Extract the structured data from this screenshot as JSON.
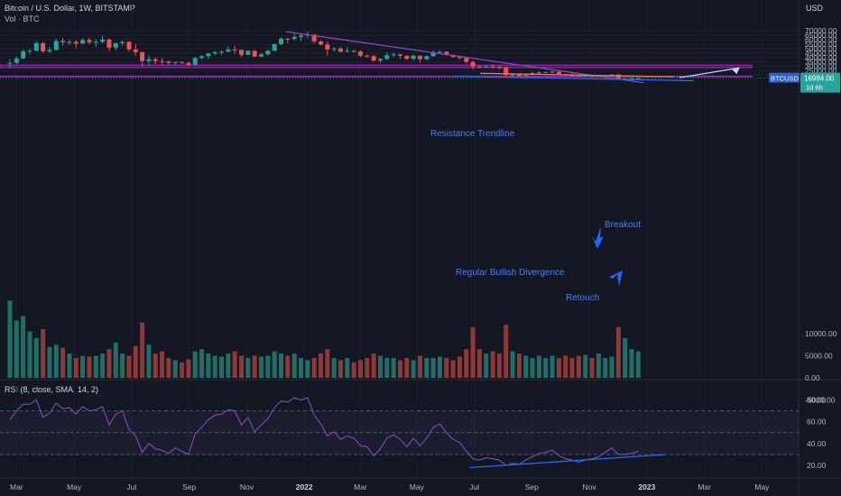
{
  "header": {
    "symbol_line": "Bitcoin / U.S. Dollar, 1W, BITSTAMP",
    "vol_line": "Vol · BTC",
    "currency": "USD",
    "rsi_line": "RSI (8, close, SMA, 14, 2)"
  },
  "price_badge": {
    "ticker": "BTCUSD",
    "price": "16984.00",
    "countdown": "1d 6h"
  },
  "colors": {
    "background": "#131722",
    "up": "#26a69a",
    "down": "#ef5350",
    "up_vol": "#1f6e67",
    "down_vol": "#8f3836",
    "zone": "#9c27b0",
    "trend_purple": "#8e44c8",
    "orange": "#f57c3a",
    "blue": "#2962ff",
    "cyan_arrow": "#a8e6ef",
    "rsi": "#7e57c2"
  },
  "annotations": {
    "resistance": "Resistance Trendline",
    "breakout": "Breakout",
    "divergence": "Regular Bullish Divergence",
    "retouch": "Retouch"
  },
  "chart_data": [
    {
      "type": "candlestick",
      "title": "Bitcoin / U.S. Dollar, 1W, BITSTAMP",
      "ylabel": "USD",
      "ylim": [
        -7000,
        75000
      ],
      "price_ticks": [
        70000,
        65000,
        60000,
        55000,
        50000,
        45000,
        40000,
        35000,
        30000,
        25000,
        20000
      ],
      "volume_axis_ticks": [
        "10000.00",
        "5000.00",
        "0.00",
        "-5000.00"
      ],
      "x_tick_labels": [
        "Mar",
        "May",
        "Jul",
        "Sep",
        "Nov",
        "2022",
        "Mar",
        "May",
        "Jul",
        "Sep",
        "Nov",
        "2023",
        "Mar",
        "May"
      ],
      "x_tick_weeks": [
        1,
        9.7,
        18.4,
        27.1,
        35.8,
        44.5,
        53,
        61.5,
        70.2,
        78.9,
        87.6,
        96.3,
        105,
        113.7
      ],
      "last_price": 16984,
      "ohlc": [
        [
          33000,
          38500,
          28500,
          34000
        ],
        [
          34000,
          41000,
          32500,
          39000
        ],
        [
          39000,
          49000,
          38000,
          47000
        ],
        [
          47000,
          49700,
          43500,
          47500
        ],
        [
          47500,
          58300,
          46800,
          56000
        ],
        [
          56000,
          57500,
          45000,
          47000
        ],
        [
          47000,
          52000,
          44900,
          48500
        ],
        [
          48500,
          61000,
          48000,
          58500
        ],
        [
          58500,
          61800,
          53000,
          57000
        ],
        [
          57000,
          60000,
          54000,
          57500
        ],
        [
          57500,
          59500,
          50400,
          55500
        ],
        [
          55500,
          61600,
          55000,
          59500
        ],
        [
          59500,
          62000,
          55000,
          57000
        ],
        [
          57000,
          60500,
          52000,
          57500
        ],
        [
          57500,
          64800,
          56000,
          60000
        ],
        [
          60000,
          61500,
          47000,
          51000
        ],
        [
          51000,
          57000,
          48000,
          56000
        ],
        [
          56000,
          59000,
          53000,
          57500
        ],
        [
          57500,
          58000,
          46500,
          49000
        ],
        [
          49000,
          55000,
          42000,
          46000
        ],
        [
          46000,
          46500,
          30000,
          36000
        ],
        [
          36000,
          42000,
          31000,
          38000
        ],
        [
          38000,
          40000,
          32500,
          36000
        ],
        [
          36000,
          39500,
          31500,
          35500
        ],
        [
          35500,
          36500,
          32000,
          34000
        ],
        [
          34000,
          35000,
          31000,
          35000
        ],
        [
          35000,
          35500,
          32800,
          34000
        ],
        [
          34000,
          35200,
          30500,
          32000
        ],
        [
          32000,
          40500,
          31800,
          39500
        ],
        [
          39500,
          42500,
          37500,
          41500
        ],
        [
          41500,
          45000,
          38000,
          44500
        ],
        [
          44500,
          47000,
          42500,
          46000
        ],
        [
          46000,
          48000,
          42500,
          46500
        ],
        [
          46500,
          52000,
          46000,
          49000
        ],
        [
          49000,
          52800,
          44000,
          48500
        ],
        [
          48500,
          48800,
          40500,
          43000
        ],
        [
          43000,
          48000,
          42800,
          47500
        ],
        [
          47500,
          48500,
          40700,
          41000
        ],
        [
          41000,
          45000,
          40800,
          43500
        ],
        [
          43500,
          48500,
          42500,
          47500
        ],
        [
          47500,
          55500,
          47000,
          55000
        ],
        [
          55000,
          62500,
          53800,
          61000
        ],
        [
          61000,
          62000,
          56000,
          60800
        ],
        [
          60800,
          67000,
          59000,
          63000
        ],
        [
          63000,
          66500,
          58000,
          64500
        ],
        [
          64500,
          69000,
          61500,
          65500
        ],
        [
          65500,
          66500,
          55600,
          58000
        ],
        [
          58000,
          59000,
          53500,
          54500
        ],
        [
          54500,
          58000,
          42000,
          49000
        ],
        [
          49000,
          52000,
          46500,
          50000
        ],
        [
          50000,
          51800,
          45500,
          46500
        ],
        [
          46500,
          52000,
          45800,
          47500
        ],
        [
          47500,
          48500,
          45500,
          47000
        ],
        [
          47000,
          47800,
          40500,
          42000
        ],
        [
          42000,
          43500,
          39500,
          41500
        ],
        [
          41500,
          43000,
          35500,
          36500
        ],
        [
          36500,
          39000,
          34000,
          38500
        ],
        [
          38500,
          45500,
          37000,
          42500
        ],
        [
          42500,
          45800,
          41000,
          43500
        ],
        [
          43500,
          44000,
          38000,
          42000
        ],
        [
          42000,
          42500,
          37200,
          38500
        ],
        [
          38500,
          43000,
          37000,
          42000
        ],
        [
          42000,
          42500,
          34300,
          38000
        ],
        [
          38000,
          42500,
          37500,
          41500
        ],
        [
          41500,
          48000,
          41000,
          45800
        ],
        [
          45800,
          48200,
          44500,
          46500
        ],
        [
          46500,
          47000,
          42000,
          43000
        ],
        [
          43000,
          43300,
          39500,
          40500
        ],
        [
          40500,
          41500,
          38000,
          39500
        ],
        [
          39500,
          40000,
          33000,
          35000
        ],
        [
          35000,
          36500,
          26500,
          30000
        ],
        [
          30000,
          31500,
          28700,
          29400
        ],
        [
          29400,
          32000,
          28500,
          30000
        ],
        [
          30000,
          32300,
          29000,
          29800
        ],
        [
          29800,
          30300,
          26500,
          29000
        ],
        [
          29000,
          29500,
          17600,
          20500
        ],
        [
          20500,
          22000,
          17800,
          21000
        ],
        [
          21000,
          22000,
          18600,
          19300
        ],
        [
          19300,
          21500,
          18900,
          20500
        ],
        [
          20500,
          24000,
          19500,
          22500
        ],
        [
          22500,
          24500,
          20800,
          23300
        ],
        [
          23300,
          24200,
          22500,
          23800
        ],
        [
          23800,
          25000,
          22000,
          24200
        ],
        [
          24200,
          24400,
          20800,
          21500
        ],
        [
          21500,
          21800,
          19600,
          20100
        ],
        [
          20100,
          22800,
          19500,
          19800
        ],
        [
          19800,
          20500,
          18200,
          18800
        ],
        [
          18800,
          20400,
          18600,
          19400
        ],
        [
          19400,
          20300,
          18500,
          19100
        ],
        [
          19100,
          20500,
          18400,
          19500
        ],
        [
          19500,
          20400,
          18900,
          20100
        ],
        [
          20100,
          21500,
          19800,
          20900
        ],
        [
          20900,
          21400,
          15500,
          16300
        ],
        [
          16300,
          17200,
          15800,
          16500
        ],
        [
          16500,
          17500,
          16300,
          16900
        ],
        [
          16900,
          17400,
          16500,
          16984
        ]
      ],
      "volume": [
        17500,
        13000,
        14000,
        10500,
        9000,
        11000,
        7000,
        7500,
        6800,
        5500,
        4500,
        5000,
        4800,
        5000,
        5500,
        6500,
        8000,
        5500,
        5000,
        7200,
        12500,
        7500,
        5500,
        6000,
        4500,
        4000,
        3500,
        4200,
        6000,
        6500,
        5500,
        5000,
        4800,
        5500,
        6000,
        5000,
        4500,
        5000,
        4800,
        5000,
        6000,
        5500,
        5000,
        5500,
        4500,
        4000,
        4500,
        5500,
        6500,
        4500,
        4000,
        4500,
        3500,
        4000,
        4500,
        5500,
        5000,
        4500,
        4500,
        4000,
        4500,
        4000,
        5000,
        4500,
        4500,
        4800,
        4500,
        4000,
        4800,
        6500,
        11500,
        6500,
        5500,
        6000,
        5500,
        12000,
        6000,
        5500,
        5000,
        4500,
        5000,
        4500,
        5000,
        4500,
        5000,
        4500,
        5000,
        5200,
        4500,
        5500,
        4500,
        4800,
        11500,
        9000,
        6500,
        6000
      ],
      "series": [
        {
          "name": "Vol · BTC",
          "values_key": "volume"
        }
      ]
    },
    {
      "type": "line",
      "title": "RSI (8, close, SMA, 14, 2)",
      "ylim": [
        10,
        90
      ],
      "y_ticks": [
        80.0,
        60.0,
        40.0,
        20.0
      ],
      "band": [
        30,
        70
      ],
      "midline": 50,
      "rsi": [
        62,
        70,
        76,
        76,
        80,
        64,
        68,
        77,
        72,
        73,
        67,
        74,
        70,
        71,
        74,
        57,
        67,
        70,
        53,
        47,
        32,
        40,
        35,
        34,
        31,
        36,
        33,
        30,
        49,
        55,
        62,
        66,
        67,
        71,
        70,
        57,
        64,
        51,
        57,
        63,
        73,
        79,
        78,
        82,
        80,
        82,
        66,
        58,
        47,
        51,
        44,
        47,
        45,
        38,
        37,
        29,
        35,
        45,
        48,
        44,
        37,
        45,
        38,
        45,
        55,
        58,
        50,
        44,
        41,
        33,
        26,
        25,
        27,
        26,
        25,
        20,
        22,
        21,
        25,
        28,
        31,
        32,
        34,
        29,
        26,
        25,
        23,
        25,
        26,
        28,
        32,
        36,
        30,
        30,
        31,
        33
      ]
    }
  ]
}
